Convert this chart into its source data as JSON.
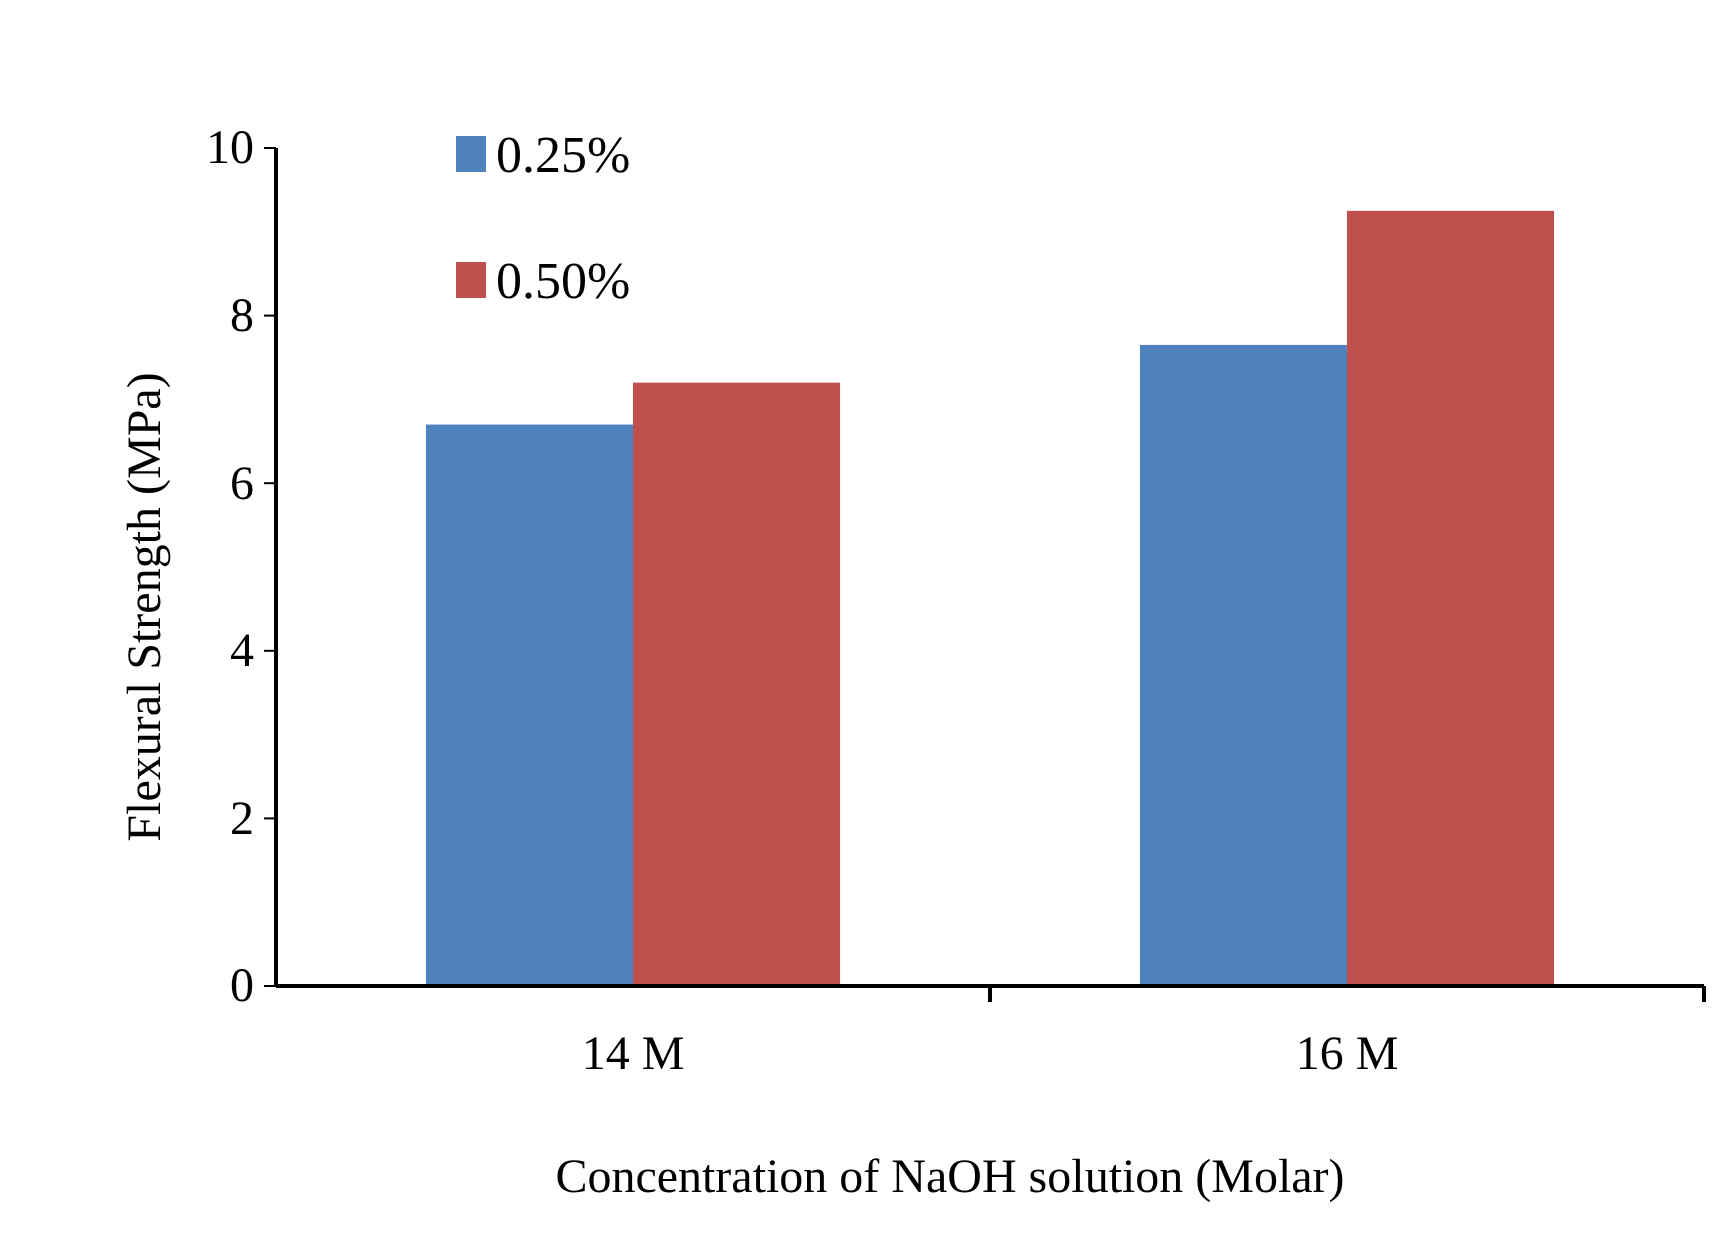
{
  "chart_data": {
    "type": "bar",
    "xlabel": "Concentration of NaOH solution (Molar)",
    "ylabel": "Flexural Strength (MPa)",
    "categories": [
      "14 M",
      "16 M"
    ],
    "series": [
      {
        "name": "0.25%",
        "color": "#4f81bd",
        "values": [
          6.7,
          7.65
        ]
      },
      {
        "name": "0.50%",
        "color": "#c0504d",
        "values": [
          7.2,
          9.25
        ]
      }
    ],
    "ylim": [
      0,
      10
    ],
    "yticks": [
      0,
      2,
      4,
      6,
      8,
      10
    ],
    "grid": false,
    "legend": "top left"
  }
}
